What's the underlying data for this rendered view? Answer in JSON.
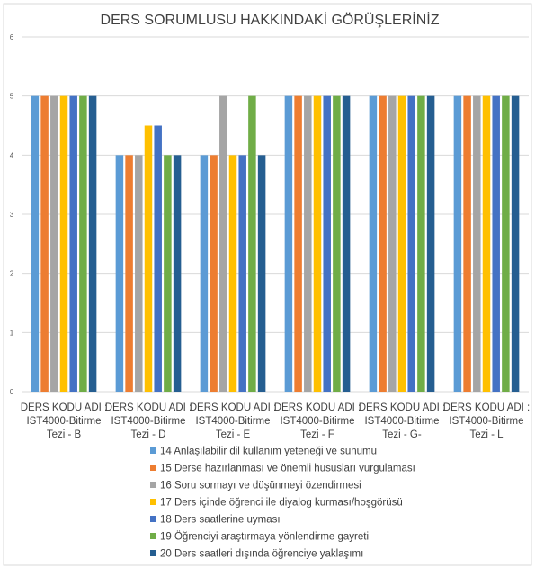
{
  "chart_data": {
    "type": "bar",
    "title": "DERS SORUMLUSU HAKKINDAKİ GÖRÜŞLERİNİZ",
    "xlabel": "",
    "ylabel": "",
    "ylim": [
      0,
      6
    ],
    "yticks": [
      0,
      1,
      2,
      3,
      4,
      5,
      6
    ],
    "grid": true,
    "legend_position": "bottom",
    "categories": [
      [
        "DERS KODU ADI :",
        "IST4000-Bitirme",
        "Tezi - B"
      ],
      [
        "DERS KODU ADI :",
        "IST4000-Bitirme",
        "Tezi - D"
      ],
      [
        "DERS KODU ADI :",
        "IST4000-Bitirme",
        "Tezi - E"
      ],
      [
        "DERS KODU ADI :",
        "IST4000-Bitirme",
        "Tezi - F"
      ],
      [
        "DERS KODU ADI :",
        "IST4000-Bitirme",
        "Tezi - G-"
      ],
      [
        "DERS KODU ADI :",
        "IST4000-Bitirme",
        "Tezi - L"
      ]
    ],
    "series": [
      {
        "name": "14 Anlaşılabilir dil kullanım yeteneği ve sunumu",
        "color": "#5B9BD5",
        "values": [
          5,
          4,
          4,
          5,
          5,
          5
        ]
      },
      {
        "name": "15 Derse hazırlanması ve önemli hususları vurgulaması",
        "color": "#ED7D31",
        "values": [
          5,
          4,
          4,
          5,
          5,
          5
        ]
      },
      {
        "name": "16 Soru sormayı ve düşünmeyi özendirmesi",
        "color": "#A5A5A5",
        "values": [
          5,
          4,
          5,
          5,
          5,
          5
        ]
      },
      {
        "name": "17 Ders içinde öğrenci ile diyalog kurması/hoşgörüsü",
        "color": "#FFC000",
        "values": [
          5,
          4.5,
          4,
          5,
          5,
          5
        ]
      },
      {
        "name": "18 Ders saatlerine uyması",
        "color": "#4472C4",
        "values": [
          5,
          4.5,
          4,
          5,
          5,
          5
        ]
      },
      {
        "name": "19 Öğrenciyi araştırmaya yönlendirme gayreti",
        "color": "#70AD47",
        "values": [
          5,
          4,
          5,
          5,
          5,
          5
        ]
      },
      {
        "name": "20 Ders saatleri dışında öğrenciye yaklaşımı",
        "color": "#255E91",
        "values": [
          5,
          4,
          4,
          5,
          5,
          5
        ]
      }
    ]
  }
}
